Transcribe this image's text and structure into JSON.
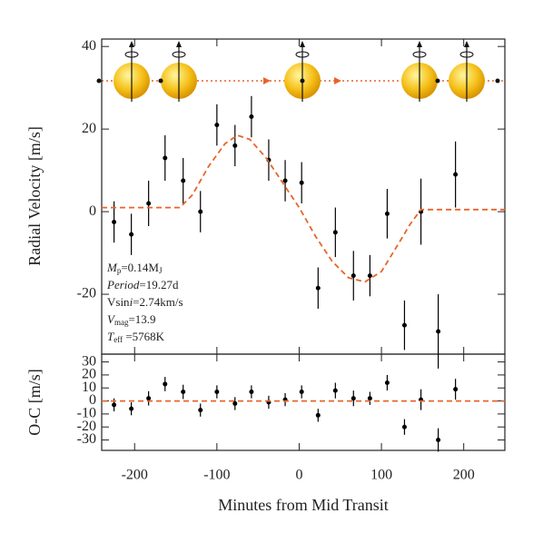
{
  "chart_data": [
    {
      "type": "scatter",
      "ylabel": "Radial Velocity [m/s]",
      "xlim": [
        -240,
        250
      ],
      "ylim": [
        -34.5,
        41.8
      ],
      "yticks": [
        -20,
        0,
        20,
        40
      ],
      "annotations": [
        [
          {
            "t": "M",
            "italic": true
          },
          {
            "t": "p",
            "sub": true
          },
          {
            "t": "=0.14M"
          },
          {
            "t": "J",
            "sub": true
          }
        ],
        [
          {
            "t": "Period",
            "italic": true
          },
          {
            "t": "=19.27d"
          }
        ],
        [
          {
            "t": "V"
          },
          {
            "t": "sin"
          },
          {
            "t": "i",
            "italic": true
          },
          {
            "t": "=2.74km/s"
          }
        ],
        [
          {
            "t": "V",
            "italic": true
          },
          {
            "t": "mag",
            "sub": true
          },
          {
            "t": "=13.9"
          }
        ],
        [
          {
            "t": "T",
            "italic": true
          },
          {
            "t": "eff",
            "sub": true
          },
          {
            "t": " =5768K"
          }
        ]
      ],
      "series": [
        {
          "color": "#000000",
          "style": "points",
          "x": [
            -225,
            -204,
            -183,
            -163,
            -141,
            -120,
            -100,
            -78,
            -58,
            -37,
            -17,
            3,
            23,
            44,
            66,
            86,
            107,
            128,
            148,
            169,
            190
          ],
          "values": [
            -2.5,
            -5.5,
            2,
            13,
            7.5,
            0,
            21,
            16,
            23,
            12.5,
            7.5,
            7,
            -18.5,
            -5,
            -15.5,
            -15.5,
            -0.5,
            -27.5,
            0,
            -29,
            9
          ],
          "errors": [
            5,
            5,
            5.5,
            5.5,
            5.5,
            5,
            5,
            5,
            5,
            5,
            5,
            5,
            5,
            6,
            6,
            5,
            6,
            6,
            8,
            9,
            8
          ]
        },
        {
          "color": "#e8642a",
          "style": "dashed",
          "x": [
            -240,
            -145,
            -130,
            -110,
            -90,
            -75,
            -60,
            -40,
            -20,
            0,
            20,
            40,
            60,
            80,
            100,
            120,
            135,
            148,
            250
          ],
          "values": [
            1,
            1,
            4,
            11,
            16.5,
            18.5,
            17.5,
            13,
            7,
            1,
            -6,
            -12,
            -16,
            -17,
            -14.5,
            -8,
            -3,
            0.5,
            0.5
          ]
        }
      ]
    },
    {
      "type": "scatter",
      "ylabel": "O-C [m/s]",
      "xlabel": "Minutes from Mid Transit",
      "xlim": [
        -240,
        250
      ],
      "xticks": [
        -200,
        -100,
        0,
        100,
        200
      ],
      "ylim": [
        -38,
        36
      ],
      "yticks": [
        -30,
        -20,
        -10,
        0,
        10,
        20,
        30
      ],
      "series": [
        {
          "color": "#000000",
          "style": "points",
          "x": [
            -225,
            -204,
            -183,
            -163,
            -141,
            -120,
            -100,
            -78,
            -58,
            -37,
            -17,
            3,
            23,
            44,
            66,
            86,
            107,
            128,
            148,
            169,
            190
          ],
          "values": [
            -3,
            -6,
            2,
            13,
            7,
            -7,
            7,
            -2,
            7,
            -1,
            1,
            7,
            -11,
            8,
            2,
            2,
            14,
            -20,
            1,
            -30,
            9
          ],
          "errors": [
            5,
            5,
            5.5,
            5.5,
            5.5,
            5,
            5,
            5,
            5,
            5,
            5,
            5,
            5,
            6,
            6,
            5,
            6,
            6,
            8,
            9,
            8
          ]
        },
        {
          "color": "#e8642a",
          "style": "dashed",
          "x": [
            -240,
            250
          ],
          "values": [
            0,
            0
          ]
        }
      ]
    }
  ]
}
